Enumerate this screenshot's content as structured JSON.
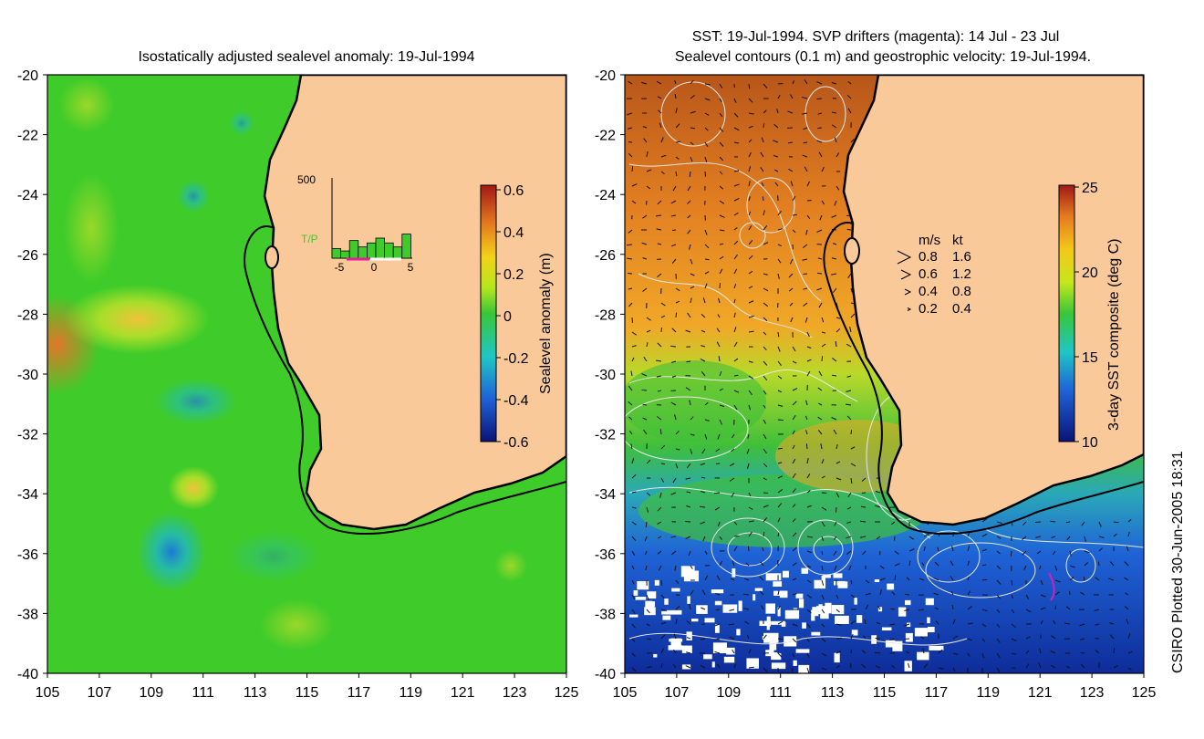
{
  "left_panel": {
    "title": "Isostatically adjusted sealevel anomaly: 19-Jul-1994",
    "x_ticks": [
      "105",
      "107",
      "109",
      "111",
      "113",
      "115",
      "117",
      "119",
      "121",
      "123",
      "125"
    ],
    "y_ticks": [
      "-20",
      "-22",
      "-24",
      "-26",
      "-28",
      "-30",
      "-32",
      "-34",
      "-36",
      "-38",
      "-40"
    ],
    "colorbar": {
      "label": "Sealevel anomaly (m)",
      "ticks": [
        "0.6",
        "0.4",
        "0.2",
        "0",
        "-0.2",
        "-0.4",
        "-0.6"
      ]
    },
    "inset": {
      "y_max": "500",
      "tag": "T/P",
      "x_ticks": [
        "-5",
        "0",
        "5"
      ],
      "values": [
        60,
        45,
        110,
        70,
        95,
        125,
        95,
        70,
        150
      ]
    }
  },
  "right_panel": {
    "title_line1": "SST: 19-Jul-1994. SVP drifters (magenta): 14 Jul - 23 Jul",
    "title_line2": "Sealevel contours (0.1 m) and geostrophic velocity: 19-Jul-1994.",
    "x_ticks": [
      "105",
      "107",
      "109",
      "111",
      "113",
      "115",
      "117",
      "119",
      "121",
      "123",
      "125"
    ],
    "y_ticks": [
      "-20",
      "-22",
      "-24",
      "-26",
      "-28",
      "-30",
      "-32",
      "-34",
      "-36",
      "-38",
      "-40"
    ],
    "colorbar": {
      "label": "3-day SST composite (deg C)",
      "ticks": [
        "25",
        "20",
        "15",
        "10"
      ]
    },
    "velocity_legend": {
      "header_ms": "m/s",
      "header_kt": "kt",
      "rows": [
        {
          "ms": "0.8",
          "kt": "1.6"
        },
        {
          "ms": "0.6",
          "kt": "1.2"
        },
        {
          "ms": "0.4",
          "kt": "0.8"
        },
        {
          "ms": "0.2",
          "kt": "0.4"
        }
      ]
    }
  },
  "footer": {
    "credit": "CSIRO Plotted 30-Jun-2005 18:31"
  },
  "colors": {
    "land": "#f9c99a",
    "ssl_green": "#3fcc2a",
    "sst_orange": "#e79a25",
    "sst_blue": "#1f63d6"
  }
}
